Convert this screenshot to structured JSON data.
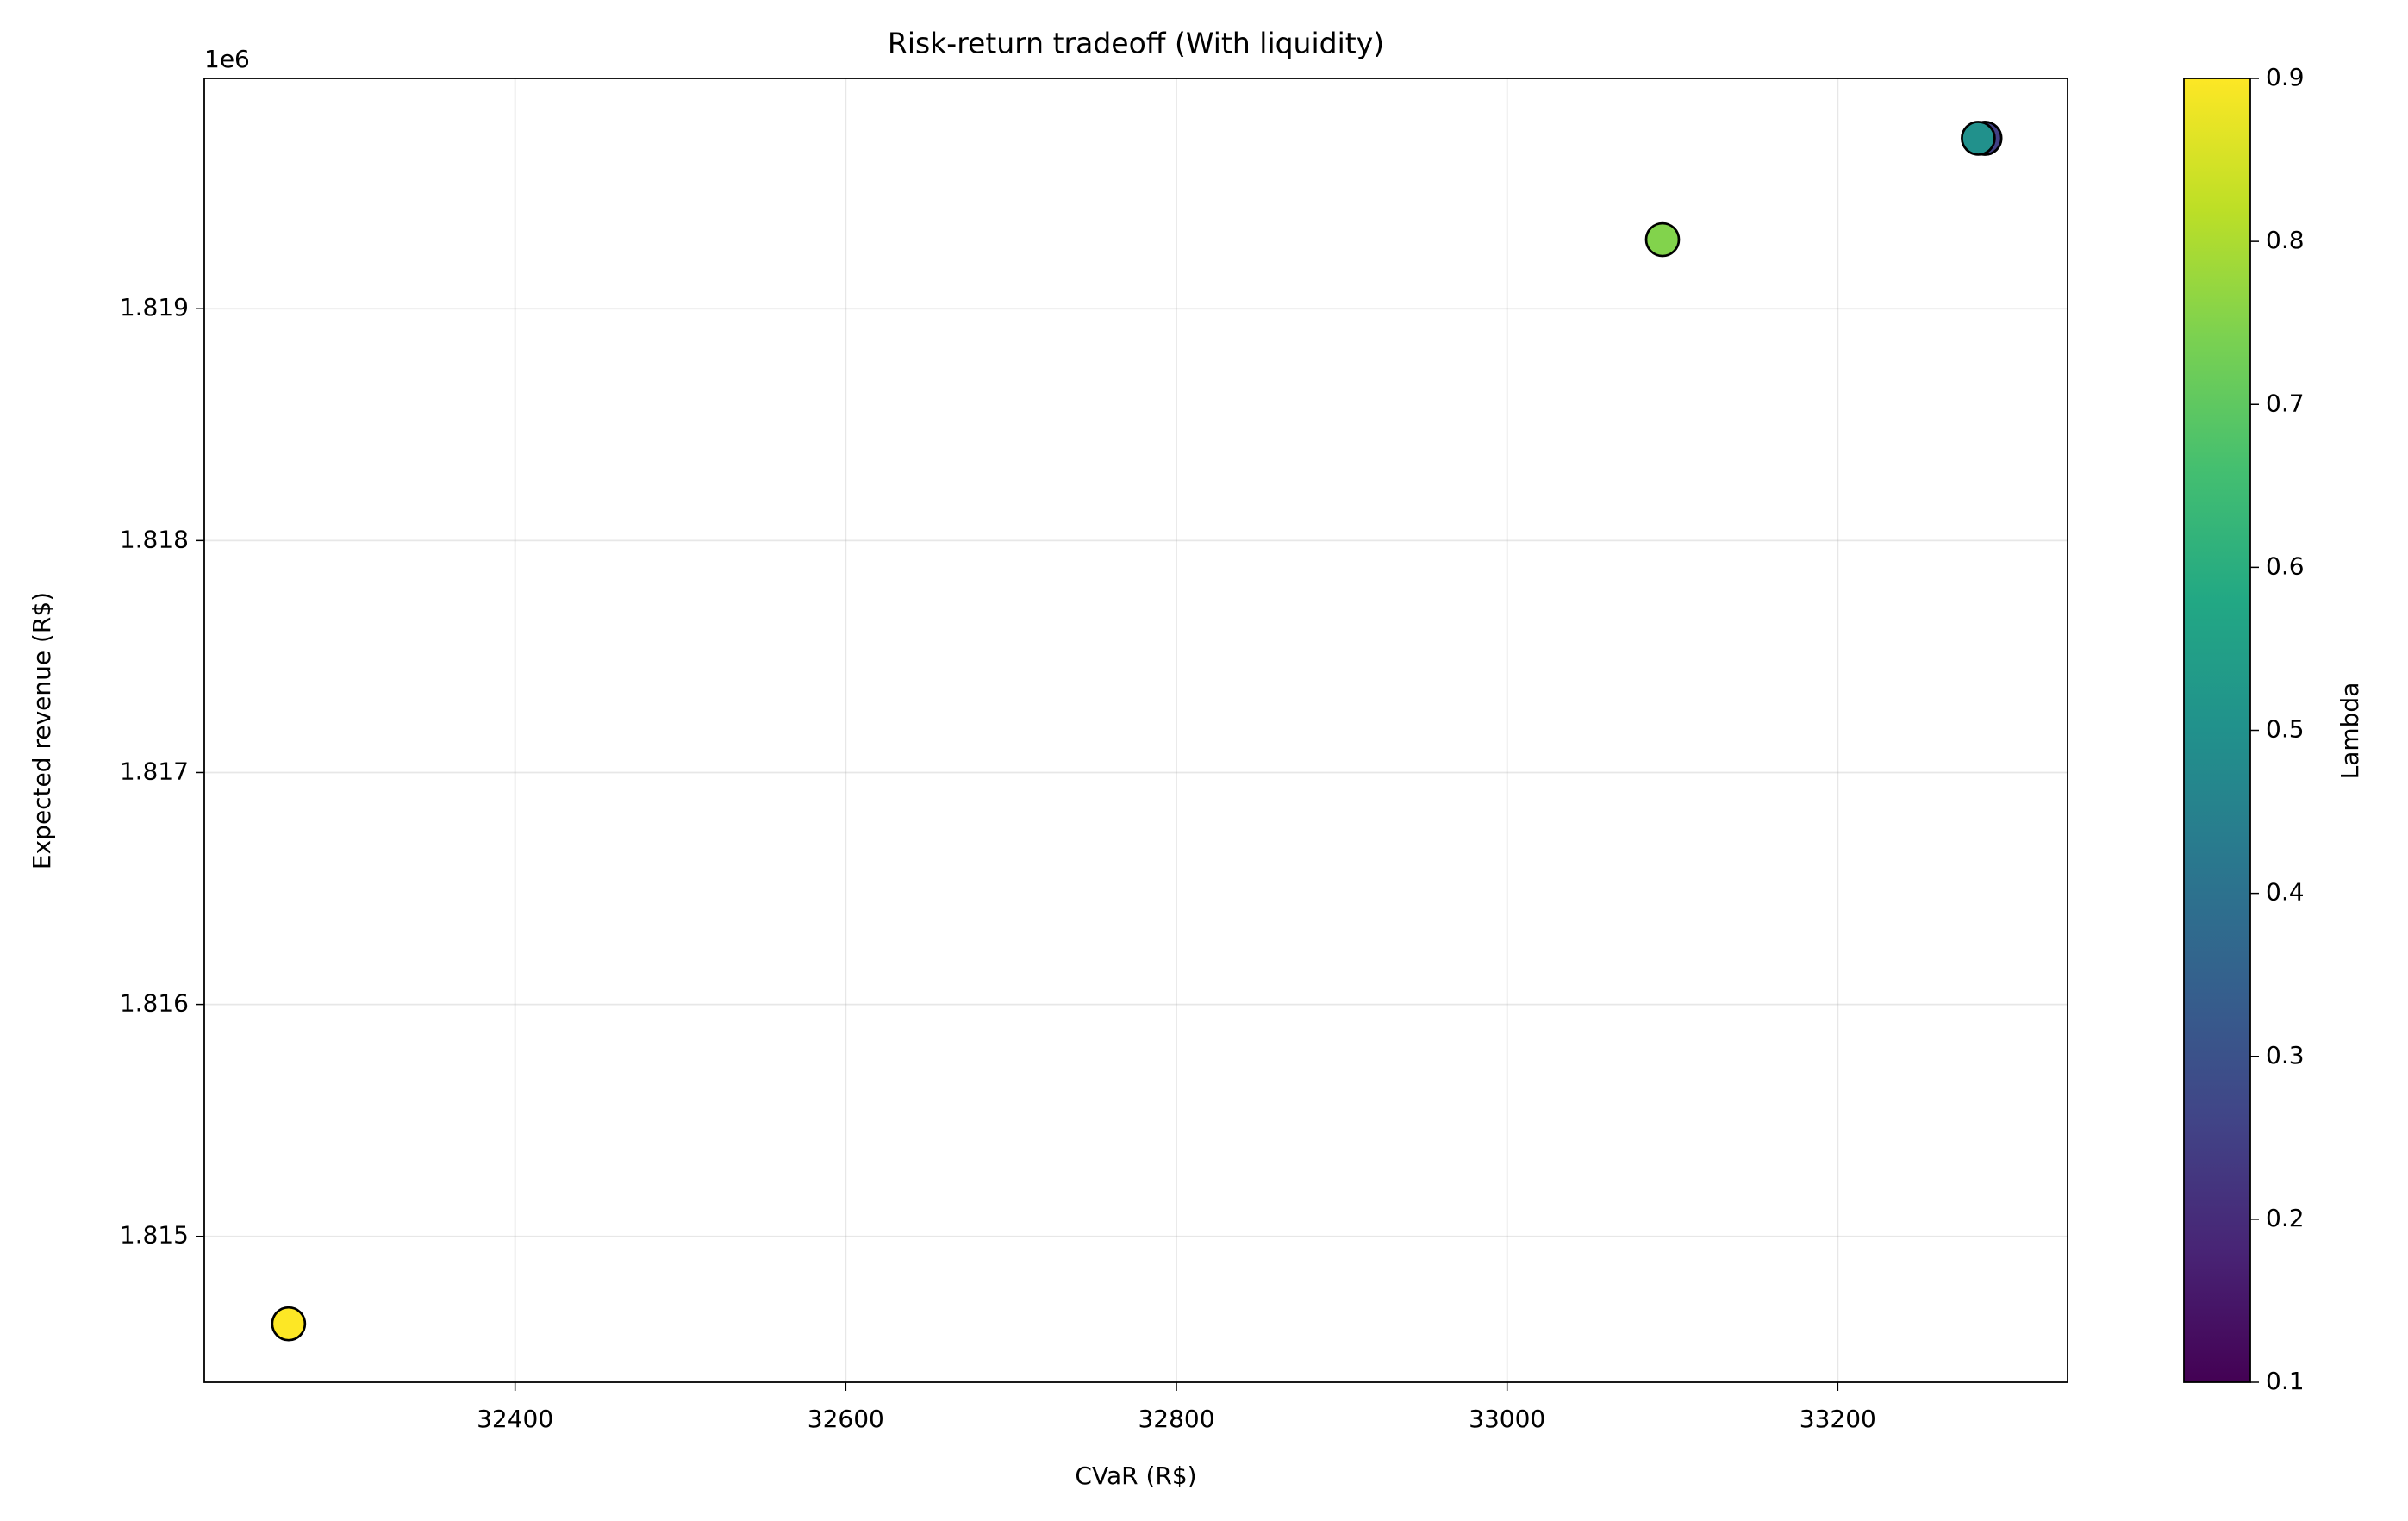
{
  "chart_data": {
    "type": "scatter",
    "title": "Risk-return tradeoff (With liquidity)",
    "x_label": "CVaR (R$)",
    "y_label": "Expected revenue (R$)",
    "y_offset_label": "1e6",
    "x": [
      33289,
      33289,
      33285,
      33094,
      32263
    ],
    "y": [
      1.819735,
      1.819735,
      1.819735,
      1.819298,
      1.814623
    ],
    "lambda": [
      0.1,
      0.25,
      0.5,
      0.75,
      0.9
    ],
    "colormap": "viridis",
    "edge_color": "#000000",
    "xlim": [
      32212,
      33339
    ],
    "xticks": [
      32400,
      32600,
      32800,
      33000,
      33200
    ],
    "ylim": [
      1.814371,
      1.819993
    ],
    "yticks": [
      1.815,
      1.816,
      1.817,
      1.818,
      1.819
    ],
    "grid": true,
    "colorbar_label": "Lambda",
    "clim": [
      0.1,
      0.9
    ],
    "cticks": [
      0.1,
      0.2,
      0.3,
      0.4,
      0.5,
      0.6,
      0.7,
      0.8,
      0.9
    ]
  }
}
